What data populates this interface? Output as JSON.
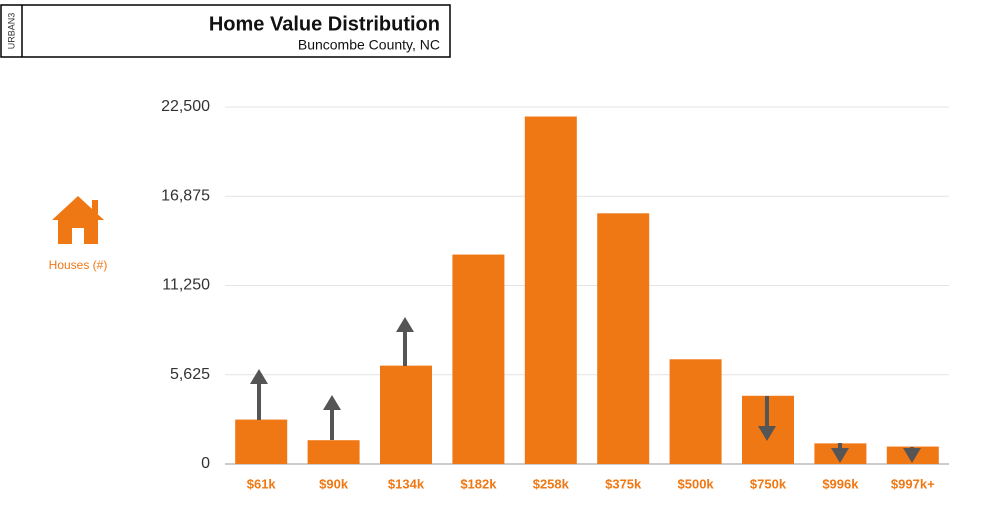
{
  "brand": "URBAN3",
  "chart_data": {
    "type": "bar",
    "title": "Home Value Distribution",
    "subtitle": "Buncombe County, NC",
    "y_label": "Houses (#)",
    "categories": [
      "$61k",
      "$90k",
      "$134k",
      "$182k",
      "$258k",
      "$375k",
      "$500k",
      "$750k",
      "$996k",
      "$997k+"
    ],
    "values": [
      2800,
      1500,
      6200,
      13200,
      21900,
      15800,
      6600,
      4300,
      1300,
      1100
    ],
    "color": "#f07814",
    "ylim": [
      0,
      22500
    ],
    "yticks": [
      0,
      {
        "value": 5625,
        "label": "5,625"
      },
      {
        "value": 11250,
        "label": "11,250"
      },
      {
        "value": 16875,
        "label": "16,875"
      },
      {
        "value": 22500,
        "label": "22,500"
      }
    ],
    "grid": true
  }
}
